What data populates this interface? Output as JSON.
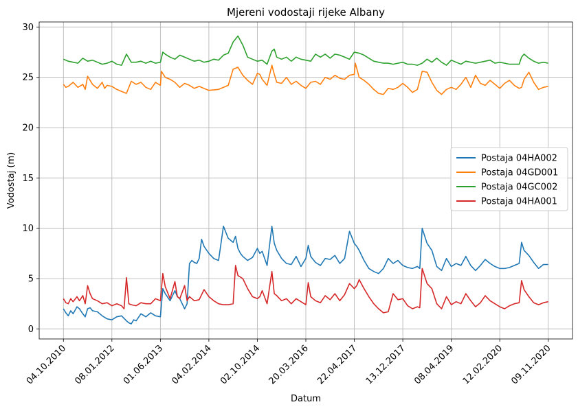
{
  "chart_data": {
    "type": "line",
    "title": "Mjereni vodostaji rijeke Albany",
    "xlabel": "Datum",
    "ylabel": "Vodostaj (m)",
    "ylim": [
      -1,
      30.5
    ],
    "yticks": [
      0,
      5,
      10,
      15,
      20,
      25,
      30
    ],
    "grid": true,
    "legend_position": "center-right",
    "x_categories": [
      "04.10.2010",
      "08.01.2012",
      "01.06.2013",
      "04.02.2014",
      "02.10.2014",
      "20.03.2016",
      "22.04.2017",
      "13.12.2017",
      "08.04.2019",
      "12.02.2020",
      "09.11.2020"
    ],
    "x_tick_positions": [
      0,
      1,
      2,
      3,
      4,
      5,
      6,
      7,
      8,
      9,
      10
    ],
    "xlim": [
      -0.5,
      10.5
    ],
    "series": [
      {
        "name": "Postaja 04HA002",
        "color": "#1f77b4",
        "x": [
          0,
          0.05,
          0.1,
          0.15,
          0.2,
          0.28,
          0.33,
          0.4,
          0.45,
          0.5,
          0.55,
          0.6,
          0.7,
          0.8,
          0.9,
          1.0,
          1.1,
          1.2,
          1.3,
          1.35,
          1.4,
          1.45,
          1.5,
          1.6,
          1.7,
          1.8,
          1.9,
          2.0,
          2.05,
          2.1,
          2.2,
          2.3,
          2.35,
          2.4,
          2.5,
          2.55,
          2.6,
          2.65,
          2.7,
          2.75,
          2.8,
          2.85,
          2.9,
          3.0,
          3.1,
          3.2,
          3.3,
          3.4,
          3.5,
          3.55,
          3.6,
          3.65,
          3.7,
          3.8,
          3.9,
          4.0,
          4.05,
          4.1,
          4.2,
          4.3,
          4.35,
          4.4,
          4.5,
          4.6,
          4.7,
          4.8,
          4.9,
          5.0,
          5.05,
          5.1,
          5.2,
          5.3,
          5.4,
          5.5,
          5.6,
          5.7,
          5.8,
          5.9,
          6.0,
          6.05,
          6.1,
          6.2,
          6.3,
          6.4,
          6.5,
          6.6,
          6.7,
          6.8,
          6.9,
          7.0,
          7.1,
          7.2,
          7.3,
          7.35,
          7.4,
          7.5,
          7.6,
          7.7,
          7.8,
          7.9,
          8.0,
          8.1,
          8.2,
          8.3,
          8.4,
          8.5,
          8.6,
          8.7,
          8.8,
          8.9,
          9.0,
          9.1,
          9.2,
          9.3,
          9.4,
          9.45,
          9.5,
          9.6,
          9.7,
          9.8,
          9.9,
          10.0
        ],
        "y": [
          2.0,
          1.6,
          1.3,
          1.8,
          1.5,
          2.2,
          2.0,
          1.5,
          1.2,
          2.0,
          2.1,
          1.8,
          1.7,
          1.3,
          1.0,
          0.9,
          1.2,
          1.3,
          0.8,
          0.6,
          0.5,
          0.9,
          0.8,
          1.5,
          1.2,
          1.6,
          1.3,
          1.2,
          4.0,
          3.5,
          2.8,
          3.8,
          3.2,
          3.0,
          2.0,
          2.5,
          6.5,
          6.8,
          6.6,
          6.5,
          7.0,
          8.9,
          8.2,
          7.5,
          7.0,
          6.8,
          10.2,
          9.0,
          8.6,
          9.2,
          8.0,
          7.5,
          7.2,
          6.8,
          7.1,
          8.0,
          7.5,
          7.7,
          6.3,
          10.2,
          8.5,
          7.8,
          7.0,
          6.5,
          6.4,
          7.2,
          6.2,
          7.0,
          8.3,
          7.2,
          6.6,
          6.3,
          7.0,
          6.9,
          7.3,
          6.5,
          7.0,
          9.7,
          8.5,
          8.2,
          7.8,
          6.8,
          6.0,
          5.7,
          5.5,
          6.0,
          7.0,
          6.5,
          6.8,
          6.3,
          6.1,
          6.0,
          6.2,
          6.0,
          10.0,
          8.5,
          7.8,
          6.2,
          5.8,
          7.0,
          6.2,
          6.5,
          6.3,
          7.2,
          6.3,
          5.8,
          6.3,
          6.9,
          6.5,
          6.2,
          6.0,
          6.0,
          6.1,
          6.3,
          6.5,
          8.6,
          7.8,
          7.3,
          6.6,
          6.0,
          6.4,
          6.4
        ]
      },
      {
        "name": "Postaja 04GD001",
        "color": "#ff7f0e",
        "x": [
          0,
          0.05,
          0.1,
          0.2,
          0.3,
          0.4,
          0.45,
          0.5,
          0.6,
          0.7,
          0.8,
          0.85,
          0.9,
          1.0,
          1.1,
          1.2,
          1.3,
          1.4,
          1.5,
          1.6,
          1.7,
          1.8,
          1.9,
          2.0,
          2.02,
          2.1,
          2.2,
          2.3,
          2.4,
          2.5,
          2.6,
          2.7,
          2.8,
          3.0,
          3.2,
          3.4,
          3.5,
          3.6,
          3.7,
          3.8,
          3.9,
          4.0,
          4.05,
          4.1,
          4.2,
          4.3,
          4.35,
          4.4,
          4.5,
          4.6,
          4.7,
          4.8,
          4.9,
          5.0,
          5.1,
          5.2,
          5.3,
          5.4,
          5.5,
          5.6,
          5.7,
          5.8,
          5.9,
          6.0,
          6.02,
          6.1,
          6.2,
          6.3,
          6.4,
          6.5,
          6.6,
          6.7,
          6.8,
          6.9,
          7.0,
          7.1,
          7.2,
          7.3,
          7.4,
          7.5,
          7.6,
          7.7,
          7.8,
          7.9,
          8.0,
          8.1,
          8.2,
          8.3,
          8.4,
          8.5,
          8.6,
          8.7,
          8.8,
          8.9,
          9.0,
          9.1,
          9.2,
          9.3,
          9.4,
          9.45,
          9.5,
          9.6,
          9.7,
          9.8,
          9.9,
          10.0
        ],
        "y": [
          24.3,
          24.0,
          24.1,
          24.5,
          24.0,
          24.3,
          23.8,
          25.1,
          24.3,
          23.9,
          24.5,
          23.9,
          24.2,
          24.1,
          23.8,
          23.6,
          23.4,
          24.6,
          24.3,
          24.5,
          24.0,
          23.8,
          24.5,
          24.2,
          25.6,
          25.0,
          24.8,
          24.5,
          24.0,
          24.4,
          24.2,
          23.9,
          24.1,
          23.7,
          23.8,
          24.2,
          25.8,
          26.0,
          25.2,
          24.7,
          24.3,
          25.4,
          25.3,
          24.8,
          24.2,
          26.2,
          25.3,
          24.5,
          24.4,
          25.0,
          24.3,
          24.6,
          24.2,
          23.9,
          24.5,
          24.6,
          24.3,
          25.0,
          24.8,
          25.2,
          24.9,
          24.8,
          25.2,
          25.3,
          26.4,
          25.0,
          24.7,
          24.3,
          23.8,
          23.4,
          23.3,
          23.9,
          23.8,
          24.0,
          24.4,
          24.0,
          23.5,
          23.8,
          25.6,
          25.5,
          24.5,
          23.7,
          23.3,
          23.8,
          24.0,
          23.8,
          24.3,
          25.0,
          24.0,
          25.2,
          24.4,
          24.2,
          24.7,
          24.3,
          23.9,
          24.4,
          24.7,
          24.2,
          23.9,
          24.0,
          24.8,
          25.5,
          24.5,
          23.8,
          24.0,
          24.1
        ]
      },
      {
        "name": "Postaja 04GC002",
        "color": "#2ca02c",
        "x": [
          0,
          0.1,
          0.2,
          0.3,
          0.4,
          0.5,
          0.6,
          0.7,
          0.8,
          0.9,
          1.0,
          1.1,
          1.2,
          1.3,
          1.4,
          1.5,
          1.6,
          1.7,
          1.8,
          1.9,
          2.0,
          2.05,
          2.1,
          2.2,
          2.3,
          2.4,
          2.5,
          2.6,
          2.7,
          2.8,
          2.9,
          3.0,
          3.1,
          3.2,
          3.3,
          3.4,
          3.5,
          3.6,
          3.7,
          3.8,
          3.9,
          4.0,
          4.1,
          4.2,
          4.3,
          4.35,
          4.4,
          4.5,
          4.6,
          4.7,
          4.8,
          4.9,
          5.0,
          5.1,
          5.2,
          5.3,
          5.4,
          5.5,
          5.6,
          5.7,
          5.8,
          5.9,
          6.0,
          6.1,
          6.2,
          6.3,
          6.4,
          6.5,
          6.6,
          6.7,
          6.8,
          6.9,
          7.0,
          7.1,
          7.2,
          7.3,
          7.4,
          7.5,
          7.6,
          7.7,
          7.8,
          7.9,
          8.0,
          8.1,
          8.2,
          8.3,
          8.4,
          8.5,
          8.6,
          8.7,
          8.8,
          8.9,
          9.0,
          9.1,
          9.2,
          9.3,
          9.4,
          9.45,
          9.5,
          9.6,
          9.7,
          9.8,
          9.9,
          10.0
        ],
        "y": [
          26.8,
          26.6,
          26.5,
          26.4,
          26.9,
          26.6,
          26.7,
          26.5,
          26.3,
          26.4,
          26.6,
          26.3,
          26.2,
          27.3,
          26.5,
          26.5,
          26.6,
          26.4,
          26.6,
          26.4,
          26.5,
          27.5,
          27.3,
          27.0,
          26.8,
          27.2,
          27.0,
          26.8,
          26.6,
          26.7,
          26.5,
          26.6,
          26.8,
          26.7,
          27.2,
          27.4,
          28.5,
          29.1,
          28.2,
          27.0,
          26.8,
          26.6,
          26.7,
          26.3,
          27.6,
          27.8,
          27.0,
          26.8,
          27.0,
          26.6,
          27.0,
          26.8,
          26.7,
          26.6,
          27.3,
          27.0,
          27.3,
          26.9,
          27.3,
          27.2,
          27.0,
          26.8,
          27.5,
          27.4,
          27.2,
          26.9,
          26.6,
          26.5,
          26.4,
          26.4,
          26.3,
          26.4,
          26.5,
          26.3,
          26.3,
          26.2,
          26.4,
          26.8,
          26.5,
          26.9,
          26.5,
          26.2,
          26.7,
          26.5,
          26.3,
          26.6,
          26.5,
          26.4,
          26.5,
          26.6,
          26.7,
          26.4,
          26.5,
          26.4,
          26.3,
          26.3,
          26.3,
          27.0,
          27.3,
          26.9,
          26.6,
          26.4,
          26.5,
          26.4
        ]
      },
      {
        "name": "Postaja 04HA001",
        "color": "#d62728",
        "x": [
          0,
          0.05,
          0.1,
          0.15,
          0.2,
          0.28,
          0.33,
          0.4,
          0.45,
          0.5,
          0.55,
          0.6,
          0.7,
          0.8,
          0.9,
          1.0,
          1.1,
          1.2,
          1.25,
          1.3,
          1.35,
          1.4,
          1.5,
          1.6,
          1.7,
          1.8,
          1.9,
          2.0,
          2.05,
          2.1,
          2.2,
          2.3,
          2.35,
          2.4,
          2.5,
          2.55,
          2.6,
          2.7,
          2.8,
          2.9,
          3.0,
          3.1,
          3.2,
          3.3,
          3.4,
          3.5,
          3.55,
          3.6,
          3.7,
          3.8,
          3.9,
          4.0,
          4.05,
          4.1,
          4.2,
          4.3,
          4.35,
          4.4,
          4.5,
          4.6,
          4.7,
          4.8,
          4.9,
          5.0,
          5.05,
          5.1,
          5.2,
          5.3,
          5.4,
          5.5,
          5.6,
          5.7,
          5.8,
          5.9,
          6.0,
          6.05,
          6.1,
          6.2,
          6.3,
          6.4,
          6.5,
          6.6,
          6.7,
          6.8,
          6.9,
          7.0,
          7.1,
          7.2,
          7.3,
          7.35,
          7.4,
          7.5,
          7.6,
          7.7,
          7.8,
          7.9,
          8.0,
          8.1,
          8.2,
          8.3,
          8.4,
          8.5,
          8.6,
          8.7,
          8.8,
          8.9,
          9.0,
          9.1,
          9.2,
          9.3,
          9.4,
          9.45,
          9.5,
          9.6,
          9.7,
          9.8,
          9.9,
          10.0
        ],
        "y": [
          3.0,
          2.6,
          2.5,
          3.0,
          2.7,
          3.2,
          2.8,
          3.3,
          2.5,
          4.3,
          3.5,
          3.0,
          2.8,
          2.5,
          2.6,
          2.3,
          2.5,
          2.3,
          2.0,
          5.1,
          2.5,
          2.4,
          2.3,
          2.6,
          2.5,
          2.5,
          3.0,
          2.8,
          5.5,
          4.2,
          3.0,
          4.7,
          3.2,
          3.0,
          4.3,
          2.8,
          3.2,
          2.8,
          2.9,
          3.9,
          3.2,
          2.8,
          2.5,
          2.4,
          2.4,
          2.5,
          6.3,
          5.3,
          5.0,
          4.0,
          3.2,
          3.0,
          3.2,
          3.8,
          2.5,
          5.7,
          3.5,
          3.3,
          2.8,
          3.0,
          2.5,
          3.0,
          2.7,
          2.4,
          4.6,
          3.2,
          2.8,
          2.6,
          3.3,
          2.9,
          3.5,
          2.8,
          3.4,
          4.5,
          4.0,
          4.3,
          4.9,
          4.0,
          3.2,
          2.5,
          2.0,
          1.6,
          1.7,
          3.5,
          2.9,
          3.0,
          2.3,
          2.0,
          2.2,
          2.1,
          6.0,
          4.5,
          4.0,
          2.5,
          2.0,
          3.2,
          2.4,
          2.7,
          2.5,
          3.5,
          2.8,
          2.2,
          2.6,
          3.3,
          2.8,
          2.5,
          2.2,
          2.0,
          2.3,
          2.5,
          2.6,
          4.8,
          3.9,
          3.2,
          2.6,
          2.4,
          2.6,
          2.7
        ]
      }
    ]
  }
}
